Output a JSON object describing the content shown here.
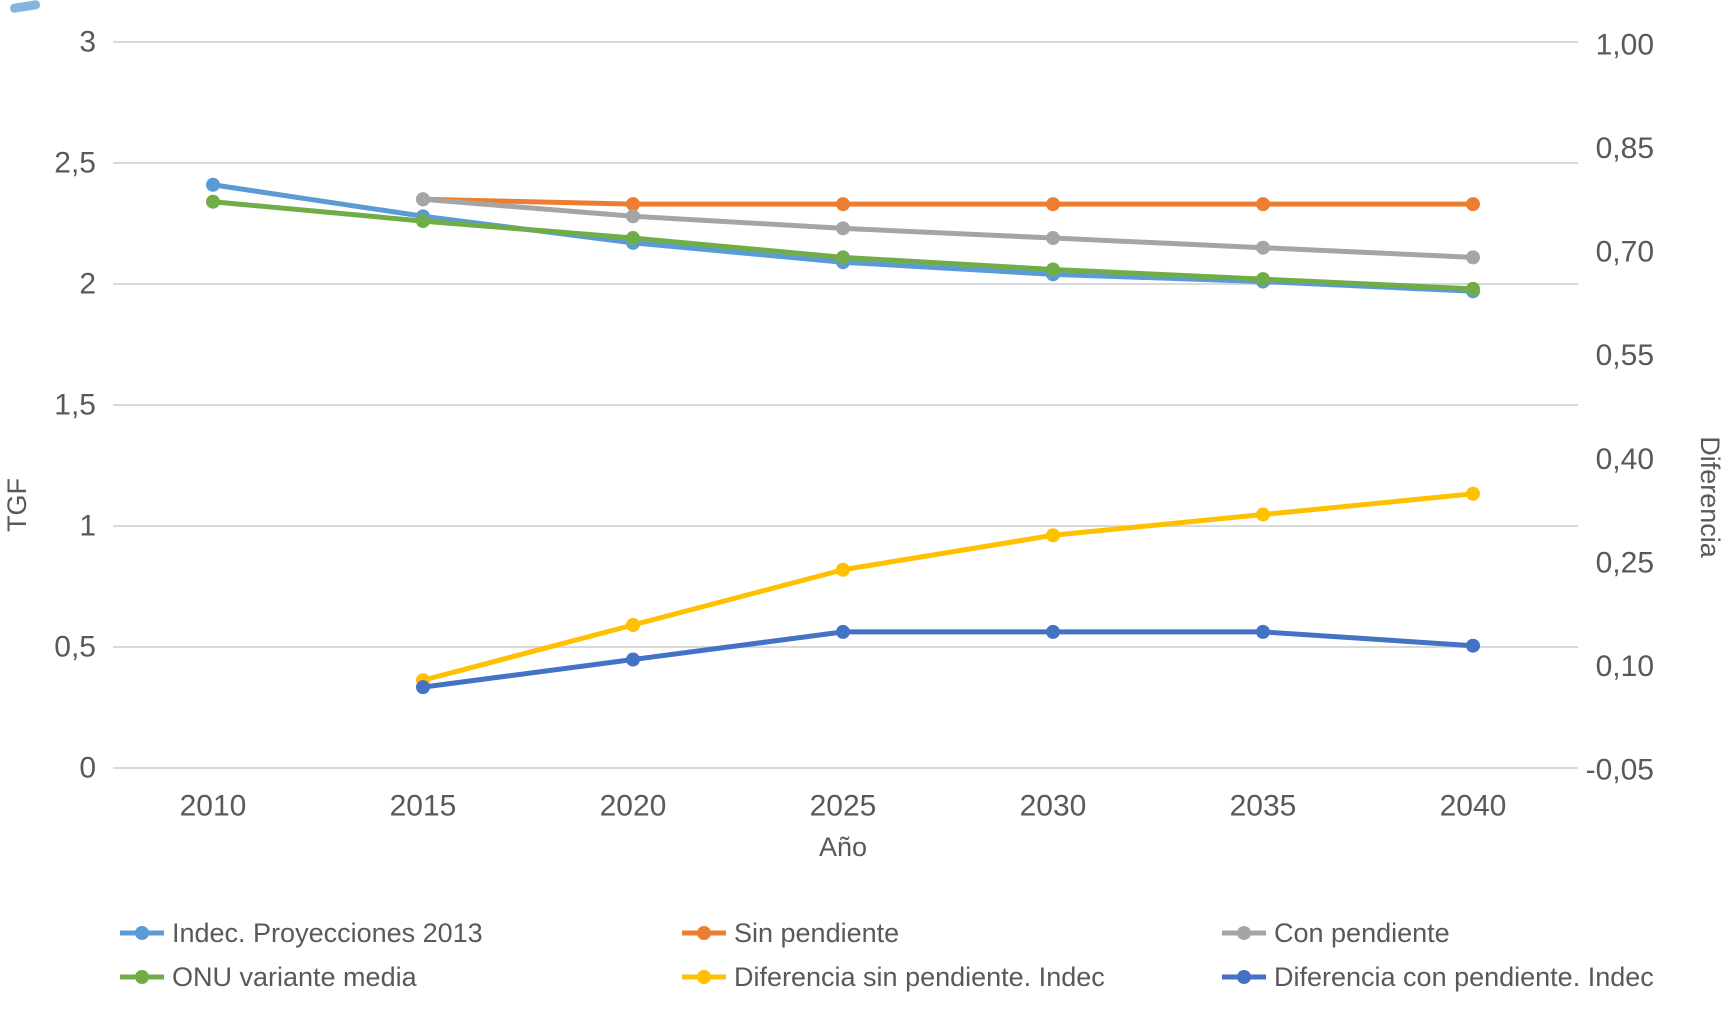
{
  "chart_data": {
    "type": "line",
    "title": "",
    "xlabel": "Año",
    "ylabel_left": "TGF",
    "ylabel_right": "Diferencia",
    "categories": [
      "2010",
      "2015",
      "2020",
      "2025",
      "2030",
      "2035",
      "2040"
    ],
    "left_axis": {
      "tick_labels": [
        "3",
        "2,5",
        "2",
        "1,5",
        "1",
        "0,5",
        "0"
      ],
      "tick_values": [
        3,
        2.5,
        2,
        1.5,
        1,
        0.5,
        0
      ],
      "range": [
        0,
        3
      ],
      "grid": true
    },
    "right_axis": {
      "tick_labels": [
        "1,00",
        "0,85",
        "0,70",
        "0,55",
        "0,40",
        "0,25",
        "0,10",
        "-0,05"
      ],
      "tick_values": [
        1.0,
        0.85,
        0.7,
        0.55,
        0.4,
        0.25,
        0.1,
        -0.05
      ],
      "range": [
        -0.05,
        1.0
      ],
      "grid": false
    },
    "series": [
      {
        "name": "Indec. Proyecciones 2013",
        "axis": "left",
        "color": "#5B9BD5",
        "values": [
          2.41,
          2.28,
          2.17,
          2.09,
          2.04,
          2.01,
          1.97
        ]
      },
      {
        "name": "Sin pendiente",
        "axis": "left",
        "color": "#ED7D31",
        "values": [
          null,
          2.35,
          2.33,
          2.33,
          2.33,
          2.33,
          2.33
        ]
      },
      {
        "name": "Con pendiente",
        "axis": "left",
        "color": "#A5A5A5",
        "values": [
          null,
          2.35,
          2.28,
          2.23,
          2.19,
          2.15,
          2.11
        ]
      },
      {
        "name": "ONU variante media",
        "axis": "left",
        "color": "#70AD47",
        "values": [
          2.34,
          2.26,
          2.19,
          2.11,
          2.06,
          2.02,
          1.98
        ]
      },
      {
        "name": "Diferencia sin pendiente. Indec",
        "axis": "right",
        "color": "#FFC000",
        "values": [
          null,
          0.08,
          0.16,
          0.24,
          0.29,
          0.32,
          0.35
        ]
      },
      {
        "name": "Diferencia con pendiente. Indec",
        "axis": "right",
        "color": "#4472C4",
        "values": [
          null,
          0.07,
          0.11,
          0.15,
          0.15,
          0.15,
          0.13
        ]
      }
    ],
    "legend": {
      "position": "bottom",
      "columns": 3,
      "row_major_order": [
        "Indec. Proyecciones 2013",
        "Sin pendiente",
        "Con pendiente",
        "ONU variante media",
        "Diferencia sin pendiente. Indec",
        "Diferencia con pendiente. Indec"
      ]
    }
  },
  "colors": {
    "grid": "#D9D9D9",
    "axis_text": "#595959",
    "background": "#FFFFFF"
  }
}
